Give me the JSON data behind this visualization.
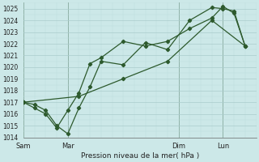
{
  "background_color": "#cce8e8",
  "grid_color_major": "#aacccc",
  "grid_color_minor": "#bbdddd",
  "line_color": "#2d5a2d",
  "marker_color": "#2d5a2d",
  "xlabel": "Pression niveau de la mer( hPa )",
  "ylim": [
    1014,
    1025.5
  ],
  "ytick_min": 1014,
  "ytick_max": 1025,
  "xtick_labels": [
    "Sam",
    "Mar",
    "Dim",
    "Lun"
  ],
  "xtick_positions": [
    0.0,
    2.0,
    7.0,
    9.0
  ],
  "xlim": [
    0,
    10.5
  ],
  "series1": {
    "x": [
      0.0,
      0.5,
      1.0,
      1.5,
      2.0,
      2.5,
      3.0,
      3.5,
      4.5,
      5.5,
      6.5,
      7.5,
      8.5,
      9.0,
      9.5,
      10.0
    ],
    "y": [
      1017.0,
      1016.8,
      1016.3,
      1015.0,
      1014.3,
      1016.5,
      1018.3,
      1020.5,
      1020.2,
      1022.1,
      1021.5,
      1024.0,
      1025.1,
      1025.0,
      1024.8,
      1021.8
    ]
  },
  "series2": {
    "x": [
      0.0,
      0.5,
      1.0,
      1.5,
      2.0,
      2.5,
      3.0,
      3.5,
      4.5,
      5.5,
      6.5,
      7.5,
      8.5,
      9.0,
      9.5,
      10.0
    ],
    "y": [
      1017.0,
      1016.5,
      1016.0,
      1014.8,
      1016.3,
      1017.8,
      1020.3,
      1020.8,
      1022.2,
      1021.8,
      1022.2,
      1023.3,
      1024.2,
      1025.2,
      1024.6,
      1021.8
    ]
  },
  "series3": {
    "x": [
      0.0,
      2.5,
      4.5,
      6.5,
      8.5,
      10.0
    ],
    "y": [
      1017.0,
      1017.5,
      1019.0,
      1020.5,
      1024.0,
      1021.8
    ]
  },
  "vline_color": "#557755",
  "vline_positions": [
    0.0,
    2.0,
    7.0,
    9.0
  ]
}
